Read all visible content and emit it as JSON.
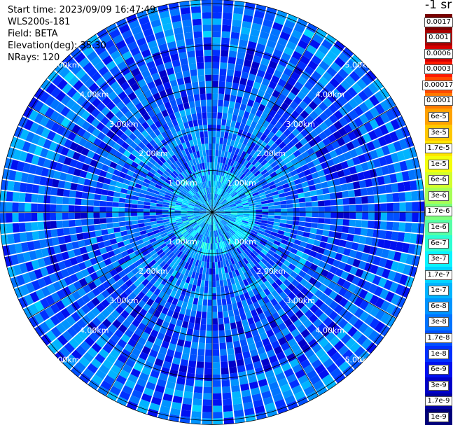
{
  "header": {
    "start_time": "Start time: 2023/09/09 16:47:49",
    "instrument": "WLS200s-181",
    "field": "Field: BETA",
    "elevation": "Elevation(deg): 35.30",
    "nrays": "NRays: 120"
  },
  "colorbar": {
    "title": "-1 sr",
    "labels": [
      "0.0017",
      "0.001",
      "0.0006",
      "0.0003",
      "0.00017",
      "0.0001",
      "6e-5",
      "3e-5",
      "1.7e-5",
      "1e-5",
      "6e-6",
      "3e-6",
      "1.7e-6",
      "1e-6",
      "6e-7",
      "3e-7",
      "1.7e-7",
      "1e-7",
      "6e-8",
      "3e-8",
      "1.7e-8",
      "1e-8",
      "6e-9",
      "3e-9",
      "1.7e-9",
      "1e-9"
    ],
    "colors": [
      "#7a0000",
      "#a80000",
      "#d50000",
      "#ff1a00",
      "#ff4a00",
      "#ff7a00",
      "#ffa200",
      "#ffc800",
      "#ffe600",
      "#f4ff0a",
      "#d2ff2c",
      "#a6ff56",
      "#7dff7d",
      "#56ffa6",
      "#2cffd2",
      "#0af4ff",
      "#00d4ff",
      "#00b4ff",
      "#0094ff",
      "#0074ff",
      "#0050ff",
      "#0030ff",
      "#0010f0",
      "#0000c8",
      "#0000a0",
      "#00007a"
    ]
  },
  "chart_data": {
    "type": "heatmap",
    "projection": "polar-ppi",
    "field": "BETA",
    "units": "sr-1",
    "nrays": 120,
    "range_ring_labels": [
      "1.00km",
      "2.00km",
      "3.00km",
      "4.00km",
      "5.00km"
    ],
    "range_rings_km": [
      1,
      2,
      3,
      4,
      5
    ],
    "max_range_km": 5.1,
    "spoke_angles_deg": [
      0,
      30,
      60,
      90,
      120,
      150,
      180,
      210,
      240,
      270,
      300,
      330
    ],
    "color_scale": "log",
    "color_range": [
      1e-09,
      0.0017
    ],
    "typical_values_by_range": [
      {
        "range_km": [
          0.0,
          1.0
        ],
        "beta": 1e-07
      },
      {
        "range_km": [
          1.0,
          2.5
        ],
        "beta": 3e-08
      },
      {
        "range_km": [
          2.5,
          4.0
        ],
        "beta": 1.7e-08
      },
      {
        "range_km": [
          4.0,
          5.1
        ],
        "beta": 3e-08
      }
    ]
  }
}
